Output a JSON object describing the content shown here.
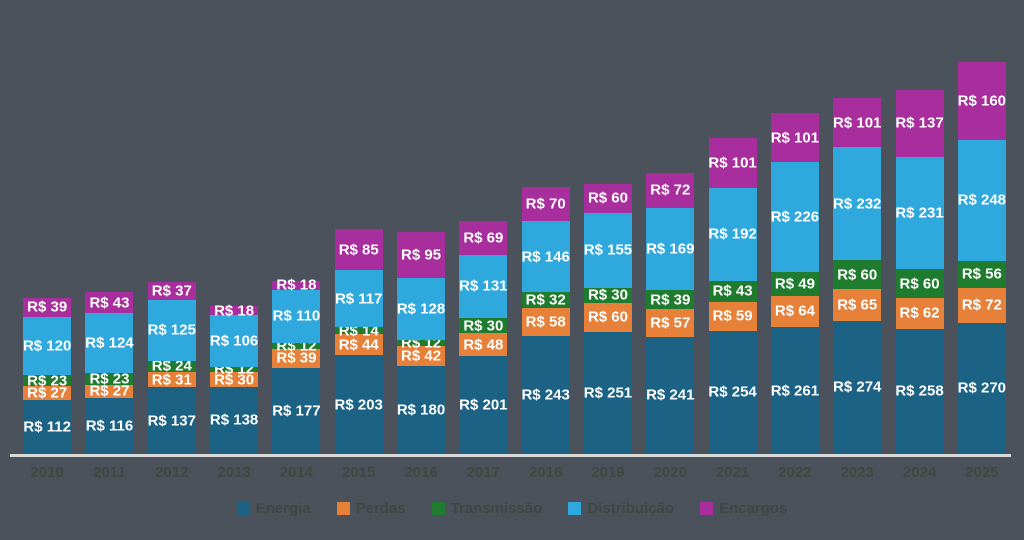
{
  "background_color": "#4C525C",
  "chart_data": {
    "type": "bar",
    "stacked": true,
    "title": "",
    "xlabel": "",
    "ylabel": "",
    "value_prefix": "R$ ",
    "categories": [
      "2010",
      "2011",
      "2012",
      "2013",
      "2014",
      "2015",
      "2016",
      "2017",
      "2018",
      "2019",
      "2020",
      "2021",
      "2022",
      "2023",
      "2024",
      "2025"
    ],
    "series": [
      {
        "name": "Energia",
        "key": "energia",
        "color": "#1C6285",
        "values": [
          112,
          116,
          137,
          138,
          177,
          203,
          180,
          201,
          243,
          251,
          241,
          254,
          261,
          274,
          258,
          270
        ]
      },
      {
        "name": "Perdas",
        "key": "perdas",
        "color": "#E7813A",
        "values": [
          27,
          27,
          31,
          30,
          39,
          44,
          42,
          48,
          58,
          60,
          57,
          59,
          64,
          65,
          62,
          72
        ]
      },
      {
        "name": "Transmissão",
        "key": "transmissao",
        "color": "#1F7B2E",
        "values": [
          23,
          23,
          24,
          12,
          12,
          14,
          12,
          30,
          32,
          30,
          39,
          43,
          49,
          60,
          60,
          56
        ]
      },
      {
        "name": "Distribuição",
        "key": "distribuicao",
        "color": "#2FA9DD",
        "values": [
          120,
          124,
          125,
          106,
          110,
          117,
          128,
          131,
          146,
          155,
          169,
          192,
          226,
          232,
          231,
          248
        ]
      },
      {
        "name": "Encargos",
        "key": "encargos",
        "color": "#A82D9D",
        "values": [
          39,
          43,
          37,
          18,
          18,
          85,
          95,
          69,
          70,
          60,
          72,
          101,
          101,
          101,
          137,
          160
        ]
      }
    ],
    "ylim": [
      0,
      820
    ],
    "grid": false,
    "legend_position": "bottom",
    "bar_value_label_color": "#FFFFFF",
    "axis_line_color": "#D9D9D9",
    "tick_label_color": "#3E4840",
    "legend_text_color": "#3E4840"
  }
}
